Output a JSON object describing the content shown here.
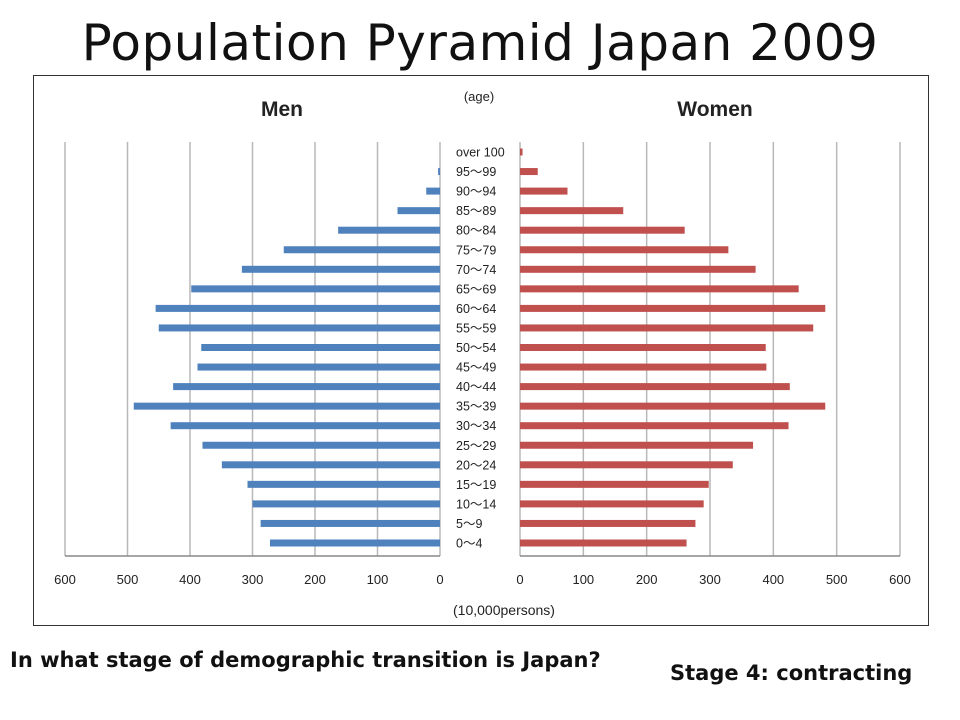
{
  "slide": {
    "title": "Population Pyramid Japan 2009",
    "question": "In what stage of demographic transition is Japan?",
    "answer": "Stage 4: contracting"
  },
  "chart_data": {
    "type": "bar",
    "orientation": "horizontal-pyramid",
    "left_label": "Men",
    "right_label": "Women",
    "age_axis_label": "(age)",
    "value_axis_label": "(10,000persons)",
    "xlim": [
      0,
      600
    ],
    "x_ticks": [
      600,
      500,
      400,
      300,
      200,
      100,
      0
    ],
    "grid": true,
    "categories": [
      "over 100",
      "95〜99",
      "90〜94",
      "85〜89",
      "80〜84",
      "75〜79",
      "70〜74",
      "65〜69",
      "60〜64",
      "55〜59",
      "50〜54",
      "45〜49",
      "40〜44",
      "35〜39",
      "30〜34",
      "25〜29",
      "20〜24",
      "15〜19",
      "10〜14",
      "5〜9",
      "0〜4"
    ],
    "series": [
      {
        "name": "Men",
        "color": "#4f81bd",
        "values": [
          0,
          3,
          22,
          68,
          163,
          250,
          317,
          398,
          455,
          450,
          382,
          388,
          427,
          490,
          431,
          380,
          349,
          308,
          300,
          287,
          272
        ]
      },
      {
        "name": "Women",
        "color": "#c0504d",
        "values": [
          4,
          28,
          75,
          163,
          260,
          329,
          372,
          440,
          482,
          463,
          388,
          389,
          426,
          482,
          424,
          368,
          336,
          298,
          290,
          277,
          263
        ]
      }
    ]
  }
}
